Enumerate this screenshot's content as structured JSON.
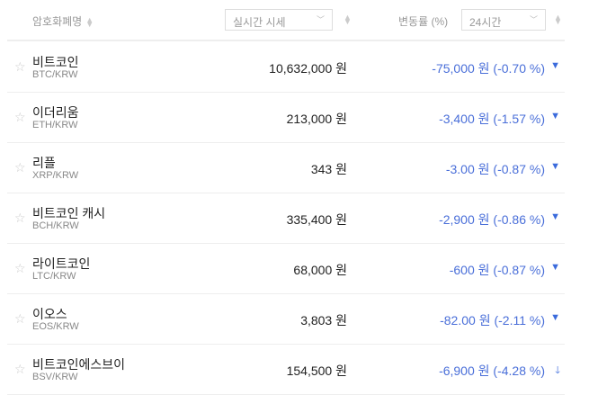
{
  "header": {
    "name_label": "암호화폐명",
    "price_select": "실시간 시세",
    "change_label": "변동률 (%)",
    "period_select": "24시간"
  },
  "colors": {
    "down": "#4a6fd9"
  },
  "coins": [
    {
      "name": "비트코인",
      "symbol": "BTC/KRW",
      "price": "10,632,000 원",
      "change": "-75,000 원 (-0.70 %)",
      "arrow": "▼"
    },
    {
      "name": "이더리움",
      "symbol": "ETH/KRW",
      "price": "213,000 원",
      "change": "-3,400 원 (-1.57 %)",
      "arrow": "▼"
    },
    {
      "name": "리플",
      "symbol": "XRP/KRW",
      "price": "343 원",
      "change": "-3.00 원 (-0.87 %)",
      "arrow": "▼"
    },
    {
      "name": "비트코인 캐시",
      "symbol": "BCH/KRW",
      "price": "335,400 원",
      "change": "-2,900 원 (-0.86 %)",
      "arrow": "▼"
    },
    {
      "name": "라이트코인",
      "symbol": "LTC/KRW",
      "price": "68,000 원",
      "change": "-600 원 (-0.87 %)",
      "arrow": "▼"
    },
    {
      "name": "이오스",
      "symbol": "EOS/KRW",
      "price": "3,803 원",
      "change": "-82.00 원 (-2.11 %)",
      "arrow": "▼"
    },
    {
      "name": "비트코인에스브이",
      "symbol": "BSV/KRW",
      "price": "154,500 원",
      "change": "-6,900 원 (-4.28 %)",
      "arrow": "🡓"
    }
  ]
}
